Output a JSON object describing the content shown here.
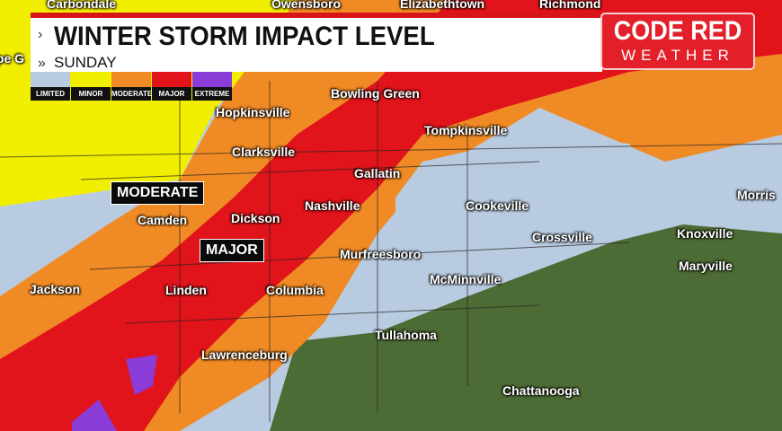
{
  "header": {
    "title": "WINTER STORM IMPACT LEVEL",
    "subtitle": "SUNDAY"
  },
  "logo": {
    "line1": "CODE RED",
    "line2": "WEATHER"
  },
  "legend": [
    {
      "label": "LIMITED",
      "color": "#b9cbe0"
    },
    {
      "label": "MINOR",
      "color": "#f2ee00"
    },
    {
      "label": "MODERATE",
      "color": "#f08a24"
    },
    {
      "label": "MAJOR",
      "color": "#e0141a"
    },
    {
      "label": "EXTREME",
      "color": "#8a3bd8"
    }
  ],
  "annotations": {
    "moderate": "MODERATE",
    "major": "MAJOR"
  },
  "cities": [
    "Carbondale",
    "Owensboro",
    "Elizabethtown",
    "Richmond",
    "Cape G",
    "Bowling Green",
    "Hopkinsville",
    "Tompkinsville",
    "Clarksville",
    "Gallatin",
    "Nashville",
    "Cookeville",
    "Morris",
    "Camden",
    "Dickson",
    "Crossville",
    "Knoxville",
    "Murfreesboro",
    "Maryville",
    "Jackson",
    "Linden",
    "Columbia",
    "McMinnville",
    "Tullahoma",
    "Lawrenceburg",
    "Chattanooga"
  ],
  "terrain_color": "#4d6b34"
}
